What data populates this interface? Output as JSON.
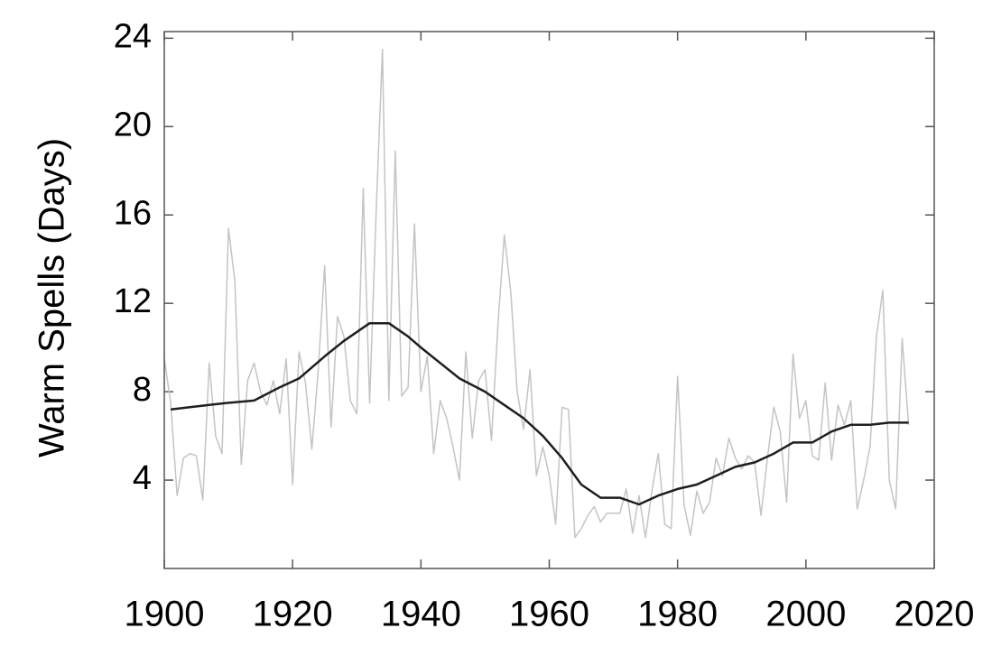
{
  "chart_data": {
    "type": "line",
    "y_label": "Warm Spells (Days)",
    "xlim": [
      1900,
      2020
    ],
    "xticks": [
      1900,
      1920,
      1940,
      1960,
      1980,
      2000,
      2020
    ],
    "ylim": [
      0,
      24.3
    ],
    "yticks": [
      4,
      8,
      12,
      16,
      20,
      24
    ],
    "series": [
      {
        "color": "#c4c4c4",
        "x": [
          1900,
          1901,
          1902,
          1903,
          1904,
          1905,
          1906,
          1907,
          1908,
          1909,
          1910,
          1911,
          1912,
          1913,
          1914,
          1915,
          1916,
          1917,
          1918,
          1919,
          1920,
          1921,
          1922,
          1923,
          1924,
          1925,
          1926,
          1927,
          1928,
          1929,
          1930,
          1931,
          1932,
          1933,
          1934,
          1935,
          1936,
          1937,
          1938,
          1939,
          1940,
          1941,
          1942,
          1943,
          1944,
          1945,
          1946,
          1947,
          1948,
          1949,
          1950,
          1951,
          1952,
          1953,
          1954,
          1955,
          1956,
          1957,
          1958,
          1959,
          1960,
          1961,
          1962,
          1963,
          1964,
          1965,
          1966,
          1967,
          1968,
          1969,
          1970,
          1971,
          1972,
          1973,
          1974,
          1975,
          1976,
          1977,
          1978,
          1979,
          1980,
          1981,
          1982,
          1983,
          1984,
          1985,
          1986,
          1987,
          1988,
          1989,
          1990,
          1991,
          1992,
          1993,
          1994,
          1995,
          1996,
          1997,
          1998,
          1999,
          2000,
          2001,
          2002,
          2003,
          2004,
          2005,
          2006,
          2007,
          2008,
          2009,
          2010,
          2011,
          2012,
          2013,
          2014,
          2015,
          2016
        ],
        "values": [
          9.5,
          7.5,
          3.3,
          5,
          5.2,
          5.1,
          3.1,
          9.3,
          6,
          5.2,
          15.4,
          13,
          4.7,
          8.5,
          9.3,
          8,
          7.4,
          8.5,
          7,
          9.5,
          3.8,
          9.8,
          8.4,
          5.4,
          9,
          13.7,
          6.4,
          11.4,
          10.5,
          7.6,
          7,
          17.2,
          7.5,
          16,
          23.5,
          7.6,
          18.9,
          7.8,
          8.2,
          15.6,
          8,
          9.6,
          5.2,
          7.6,
          6.8,
          5.5,
          4,
          9.8,
          5.9,
          8.5,
          9,
          5.8,
          11,
          15.1,
          12.5,
          8,
          6.3,
          9,
          4.2,
          5.5,
          4.2,
          2,
          7.3,
          7.2,
          1.4,
          1.8,
          2.4,
          2.8,
          2.1,
          2.5,
          2.5,
          2.5,
          3.6,
          1.6,
          3.3,
          1.4,
          3.5,
          5.2,
          2,
          1.8,
          8.7,
          2.9,
          1.5,
          3.5,
          2.5,
          3,
          5,
          4.2,
          5.9,
          5,
          4.5,
          5.1,
          4.8,
          2.4,
          5,
          7.3,
          6.2,
          3,
          9.7,
          6.8,
          7.6,
          5.1,
          4.9,
          8.4,
          4.9,
          7.4,
          6.5,
          7.6,
          2.7,
          4,
          5.5,
          10.5,
          12.6,
          4,
          2.7,
          10.4,
          6.5
        ]
      },
      {
        "color": "#1e1e1e",
        "x": [
          1901,
          1904,
          1907,
          1910,
          1914,
          1918,
          1921,
          1925,
          1928,
          1932,
          1935,
          1938,
          1940,
          1943,
          1946,
          1950,
          1953,
          1956,
          1959,
          1962,
          1965,
          1968,
          1971,
          1974,
          1977,
          1980,
          1983,
          1986,
          1989,
          1992,
          1995,
          1998,
          2001,
          2004,
          2007,
          2010,
          2013,
          2016
        ],
        "values": [
          7.2,
          7.3,
          7.4,
          7.5,
          7.6,
          8.2,
          8.6,
          9.6,
          10.3,
          11.1,
          11.1,
          10.5,
          10,
          9.3,
          8.6,
          8,
          7.4,
          6.8,
          6,
          5,
          3.8,
          3.2,
          3.2,
          2.9,
          3.3,
          3.6,
          3.8,
          4.2,
          4.6,
          4.8,
          5.2,
          5.7,
          5.7,
          6.2,
          6.5,
          6.5,
          6.6,
          6.6
        ]
      }
    ]
  }
}
